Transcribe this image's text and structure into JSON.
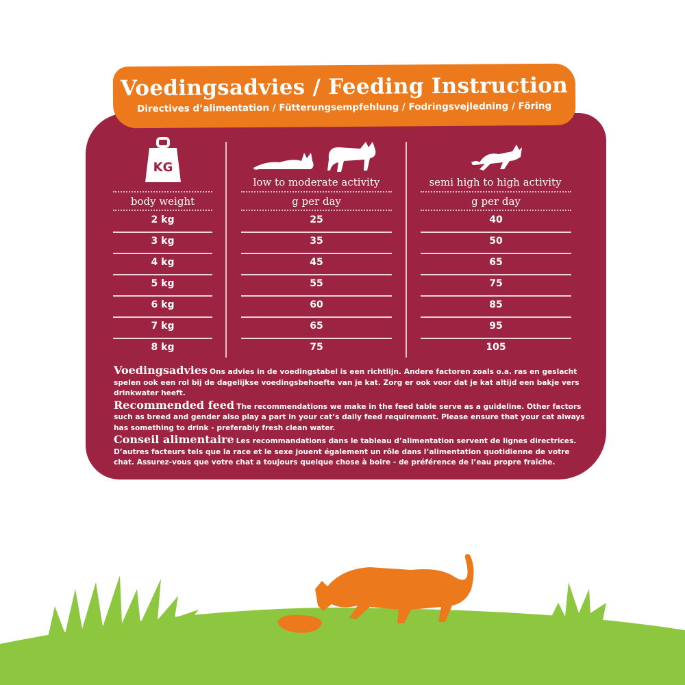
{
  "header": {
    "title": "Voedingsadvies / Feeding Instruction",
    "subtitle": "Directives d’alimentation / Fütterungsempfehlung / Fodringsvejledning / Föring"
  },
  "table": {
    "weight_icon_label": "KG",
    "columns": [
      {
        "activity": "",
        "unit": "body weight"
      },
      {
        "activity": "low to moderate activity",
        "unit": "g per day"
      },
      {
        "activity": "semi high to high activity",
        "unit": "g per day"
      }
    ],
    "rows": [
      [
        "2 kg",
        "25",
        "40"
      ],
      [
        "3 kg",
        "35",
        "50"
      ],
      [
        "4 kg",
        "45",
        "65"
      ],
      [
        "5 kg",
        "55",
        "75"
      ],
      [
        "6 kg",
        "60",
        "85"
      ],
      [
        "7 kg",
        "65",
        "95"
      ],
      [
        "8 kg",
        "75",
        "105"
      ]
    ]
  },
  "notes": [
    {
      "heading": "Voedingsadvies",
      "text": "Ons advies in de voedingstabel is een richtlijn. Andere factoren zoals o.a. ras en geslacht spelen ook een rol bij de dagelijkse voedingsbehoefte van je kat. Zorg er ook voor dat je kat altijd een bakje vers drinkwater heeft."
    },
    {
      "heading": "Recommended feed",
      "text": "The recommendations we make in the feed table serve as a guideline. Other factors such as breed and gender also play a part in your cat’s daily feed requirement. Please ensure that your cat always has something to drink - preferably fresh clean water."
    },
    {
      "heading": "Conseil alimentaire",
      "text": "Les recommandations dans le tableau d’alimentation servent de lignes directrices. D’autres facteurs tels que la race et le sexe jouent également un rôle dans l’alimentation quotidienne de votre chat. Assurez-vous que votre chat a toujours quelque chose à boire - de préférence de l’eau propre fraîche."
    }
  ],
  "colors": {
    "panel": "#9c2341",
    "banner": "#ec7a1c",
    "grass": "#8dc63f",
    "cat": "#ec7a1c"
  }
}
